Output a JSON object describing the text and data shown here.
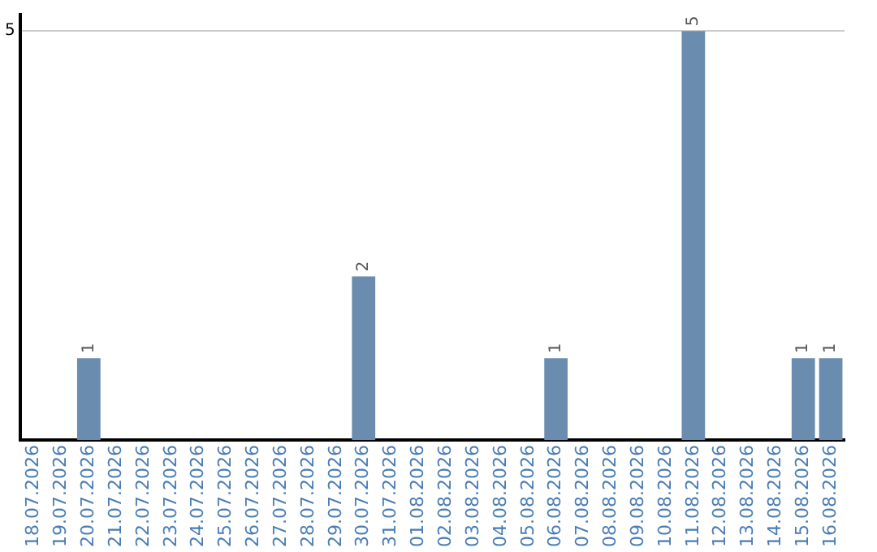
{
  "chart_data": {
    "type": "bar",
    "categories": [
      "18.07.2026",
      "19.07.2026",
      "20.07.2026",
      "21.07.2026",
      "22.07.2026",
      "23.07.2026",
      "24.07.2026",
      "25.07.2026",
      "26.07.2026",
      "27.07.2026",
      "28.07.2026",
      "29.07.2026",
      "30.07.2026",
      "31.07.2026",
      "01.08.2026",
      "02.08.2026",
      "03.08.2026",
      "04.08.2026",
      "05.08.2026",
      "06.08.2026",
      "07.08.2026",
      "08.08.2026",
      "09.08.2026",
      "10.08.2026",
      "11.08.2026",
      "12.08.2026",
      "13.08.2026",
      "14.08.2026",
      "15.08.2026",
      "16.08.2026"
    ],
    "values": [
      0,
      0,
      1,
      0,
      0,
      0,
      0,
      0,
      0,
      0,
      0,
      0,
      2,
      0,
      0,
      0,
      0,
      0,
      0,
      1,
      0,
      0,
      0,
      0,
      5,
      0,
      0,
      0,
      1,
      1
    ],
    "value_labels": [
      null,
      null,
      "1",
      null,
      null,
      null,
      null,
      null,
      null,
      null,
      null,
      null,
      "2",
      null,
      null,
      null,
      null,
      null,
      null,
      "1",
      null,
      null,
      null,
      null,
      "5",
      null,
      null,
      null,
      "1",
      "1"
    ],
    "color": "#6a8cae",
    "ylim": [
      0,
      5.2
    ],
    "yticks": [
      5
    ],
    "grid": "y",
    "legend": false
  }
}
